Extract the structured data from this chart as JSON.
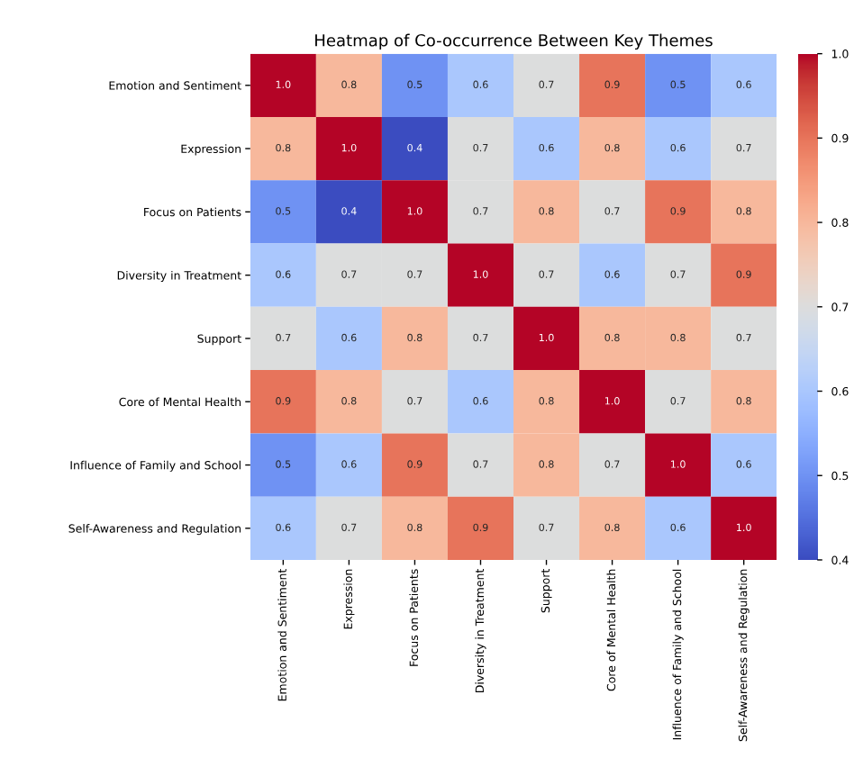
{
  "chart_data": {
    "type": "heatmap",
    "title": "Heatmap of Co-occurrence Between Key Themes",
    "categories": [
      "Emotion and Sentiment",
      "Expression",
      "Focus on Patients",
      "Diversity in Treatment",
      "Support",
      "Core of Mental Health",
      "Influence of Family and School",
      "Self-Awareness and Regulation"
    ],
    "y_categories": [
      "Emotion and Sentiment",
      "Expression",
      "Focus on Patients",
      "Diversity in Treatment",
      "Support",
      "Core of Mental Health",
      "Influence of Family and School",
      "Self-Awareness and Regulation"
    ],
    "cells": [
      [
        1.0,
        0.8,
        0.5,
        0.6,
        0.7,
        0.9,
        0.5,
        0.6
      ],
      [
        0.8,
        1.0,
        0.4,
        0.7,
        0.6,
        0.8,
        0.6,
        0.7
      ],
      [
        0.5,
        0.4,
        1.0,
        0.7,
        0.8,
        0.7,
        0.9,
        0.8
      ],
      [
        0.6,
        0.7,
        0.7,
        1.0,
        0.7,
        0.6,
        0.7,
        0.9
      ],
      [
        0.7,
        0.6,
        0.8,
        0.7,
        1.0,
        0.8,
        0.8,
        0.7
      ],
      [
        0.9,
        0.8,
        0.7,
        0.6,
        0.8,
        1.0,
        0.7,
        0.8
      ],
      [
        0.5,
        0.6,
        0.9,
        0.7,
        0.8,
        0.7,
        1.0,
        0.6
      ],
      [
        0.6,
        0.7,
        0.8,
        0.9,
        0.7,
        0.8,
        0.6,
        1.0
      ]
    ],
    "cell_labels": [
      [
        "1.0",
        "0.8",
        "0.5",
        "0.6",
        "0.7",
        "0.9",
        "0.5",
        "0.6"
      ],
      [
        "0.8",
        "1.0",
        "0.4",
        "0.7",
        "0.6",
        "0.8",
        "0.6",
        "0.7"
      ],
      [
        "0.5",
        "0.4",
        "1.0",
        "0.7",
        "0.8",
        "0.7",
        "0.9",
        "0.8"
      ],
      [
        "0.6",
        "0.7",
        "0.7",
        "1.0",
        "0.7",
        "0.6",
        "0.7",
        "0.9"
      ],
      [
        "0.7",
        "0.6",
        "0.8",
        "0.7",
        "1.0",
        "0.8",
        "0.8",
        "0.7"
      ],
      [
        "0.9",
        "0.8",
        "0.7",
        "0.6",
        "0.8",
        "1.0",
        "0.7",
        "0.8"
      ],
      [
        "0.5",
        "0.6",
        "0.9",
        "0.7",
        "0.8",
        "0.7",
        "1.0",
        "0.6"
      ],
      [
        "0.6",
        "0.7",
        "0.8",
        "0.9",
        "0.7",
        "0.8",
        "0.6",
        "1.0"
      ]
    ],
    "clim": [
      0.4,
      1.0
    ],
    "cticks": [
      0.4,
      0.5,
      0.6,
      0.7,
      0.8,
      0.9,
      {
        "value": 1.0,
        "label": "1.0"
      }
    ],
    "data_labels": true
  }
}
